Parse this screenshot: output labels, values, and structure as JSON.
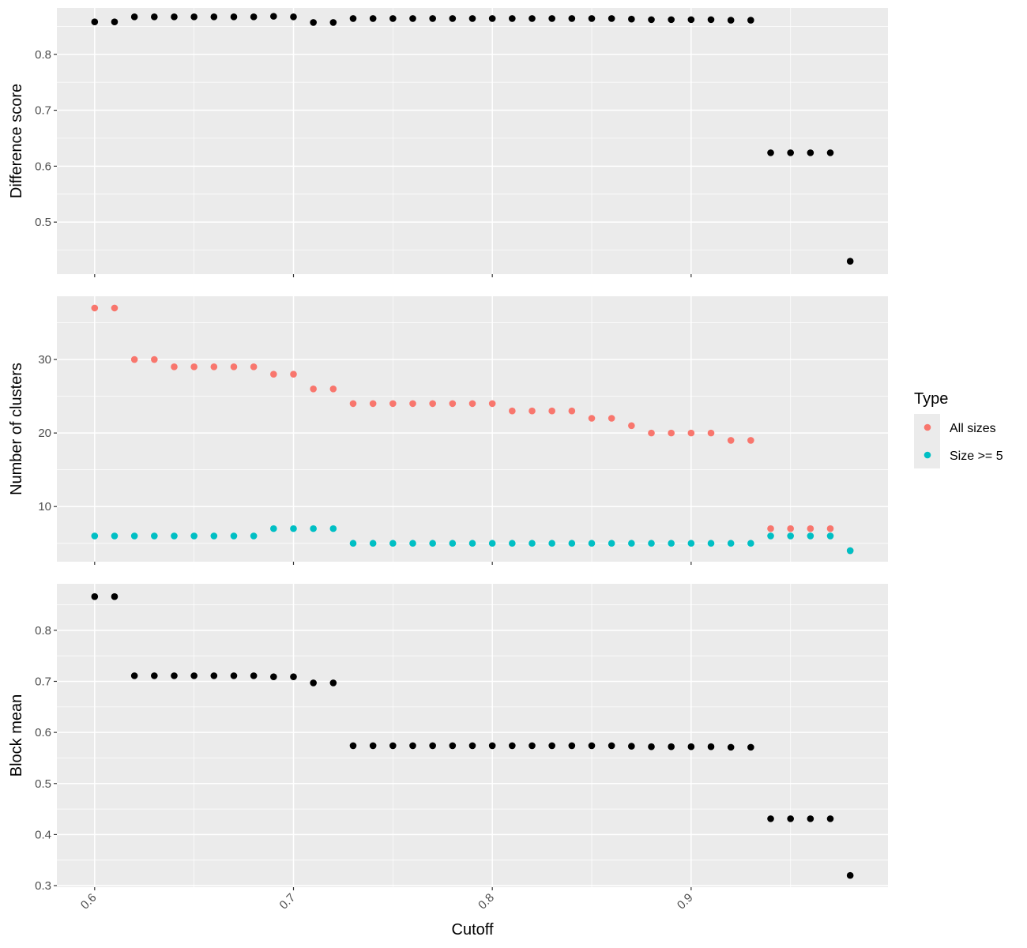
{
  "figure": {
    "xlabel": "Cutoff",
    "legend": {
      "title": "Type",
      "placement": "right",
      "entries": [
        {
          "label": "All sizes",
          "color": "#F8766D"
        },
        {
          "label": "Size >= 5",
          "color": "#00BFC4"
        }
      ]
    },
    "colors": {
      "panel_bg": "#EBEBEB",
      "grid": "#FFFFFF",
      "point_default": "#000000"
    }
  },
  "chart_data": [
    {
      "type": "scatter",
      "ylabel": "Difference score",
      "xlim": [
        0.581,
        0.999
      ],
      "ylim": [
        0.407,
        0.883
      ],
      "xticks": [
        "0.6",
        "0.7",
        "0.8",
        "0.9"
      ],
      "yticks": [
        "0.5",
        "0.6",
        "0.7",
        "0.8"
      ],
      "grid": true,
      "x": [
        0.6,
        0.61,
        0.62,
        0.63,
        0.64,
        0.65,
        0.66,
        0.67,
        0.68,
        0.69,
        0.7,
        0.71,
        0.72,
        0.73,
        0.74,
        0.75,
        0.76,
        0.77,
        0.78,
        0.79,
        0.8,
        0.81,
        0.82,
        0.83,
        0.84,
        0.85,
        0.86,
        0.87,
        0.88,
        0.89,
        0.9,
        0.91,
        0.92,
        0.93,
        0.94,
        0.95,
        0.96,
        0.97,
        0.98
      ],
      "series": [
        {
          "color": "#000000",
          "values": [
            0.858,
            0.858,
            0.867,
            0.867,
            0.867,
            0.867,
            0.867,
            0.867,
            0.867,
            0.868,
            0.867,
            0.857,
            0.857,
            0.864,
            0.864,
            0.864,
            0.864,
            0.864,
            0.864,
            0.864,
            0.864,
            0.864,
            0.864,
            0.864,
            0.864,
            0.864,
            0.864,
            0.863,
            0.862,
            0.862,
            0.862,
            0.862,
            0.861,
            0.861,
            0.624,
            0.624,
            0.624,
            0.624,
            0.43
          ]
        }
      ]
    },
    {
      "type": "scatter",
      "ylabel": "Number of clusters",
      "xlim": [
        0.581,
        0.999
      ],
      "ylim": [
        2.5,
        38.6
      ],
      "xticks": [
        "0.6",
        "0.7",
        "0.8",
        "0.9"
      ],
      "yticks": [
        "10",
        "20",
        "30"
      ],
      "grid": true,
      "x": [
        0.6,
        0.61,
        0.62,
        0.63,
        0.64,
        0.65,
        0.66,
        0.67,
        0.68,
        0.69,
        0.7,
        0.71,
        0.72,
        0.73,
        0.74,
        0.75,
        0.76,
        0.77,
        0.78,
        0.79,
        0.8,
        0.81,
        0.82,
        0.83,
        0.84,
        0.85,
        0.86,
        0.87,
        0.88,
        0.89,
        0.9,
        0.91,
        0.92,
        0.93,
        0.94,
        0.95,
        0.96,
        0.97,
        0.98
      ],
      "series": [
        {
          "name": "All sizes",
          "color": "#F8766D",
          "values": [
            37,
            37,
            30,
            30,
            29,
            29,
            29,
            29,
            29,
            28,
            28,
            26,
            26,
            24,
            24,
            24,
            24,
            24,
            24,
            24,
            24,
            23,
            23,
            23,
            23,
            22,
            22,
            21,
            20,
            20,
            20,
            20,
            19,
            19,
            7,
            7,
            7,
            7,
            4
          ]
        },
        {
          "name": "Size >= 5",
          "color": "#00BFC4",
          "values": [
            6,
            6,
            6,
            6,
            6,
            6,
            6,
            6,
            6,
            7,
            7,
            7,
            7,
            5,
            5,
            5,
            5,
            5,
            5,
            5,
            5,
            5,
            5,
            5,
            5,
            5,
            5,
            5,
            5,
            5,
            5,
            5,
            5,
            5,
            6,
            6,
            6,
            6,
            4
          ]
        }
      ]
    },
    {
      "type": "scatter",
      "ylabel": "Block mean",
      "xlim": [
        0.581,
        0.999
      ],
      "ylim": [
        0.297,
        0.891
      ],
      "xticks": [
        "0.6",
        "0.7",
        "0.8",
        "0.9"
      ],
      "yticks": [
        "0.3",
        "0.4",
        "0.5",
        "0.6",
        "0.7",
        "0.8"
      ],
      "grid": true,
      "x": [
        0.6,
        0.61,
        0.62,
        0.63,
        0.64,
        0.65,
        0.66,
        0.67,
        0.68,
        0.69,
        0.7,
        0.71,
        0.72,
        0.73,
        0.74,
        0.75,
        0.76,
        0.77,
        0.78,
        0.79,
        0.8,
        0.81,
        0.82,
        0.83,
        0.84,
        0.85,
        0.86,
        0.87,
        0.88,
        0.89,
        0.9,
        0.91,
        0.92,
        0.93,
        0.94,
        0.95,
        0.96,
        0.97,
        0.98
      ],
      "series": [
        {
          "color": "#000000",
          "values": [
            0.866,
            0.866,
            0.711,
            0.711,
            0.711,
            0.711,
            0.711,
            0.711,
            0.711,
            0.709,
            0.709,
            0.697,
            0.697,
            0.574,
            0.574,
            0.574,
            0.574,
            0.574,
            0.574,
            0.574,
            0.574,
            0.574,
            0.574,
            0.574,
            0.574,
            0.574,
            0.574,
            0.573,
            0.572,
            0.572,
            0.572,
            0.572,
            0.571,
            0.571,
            0.431,
            0.431,
            0.431,
            0.431,
            0.32
          ]
        }
      ]
    }
  ]
}
